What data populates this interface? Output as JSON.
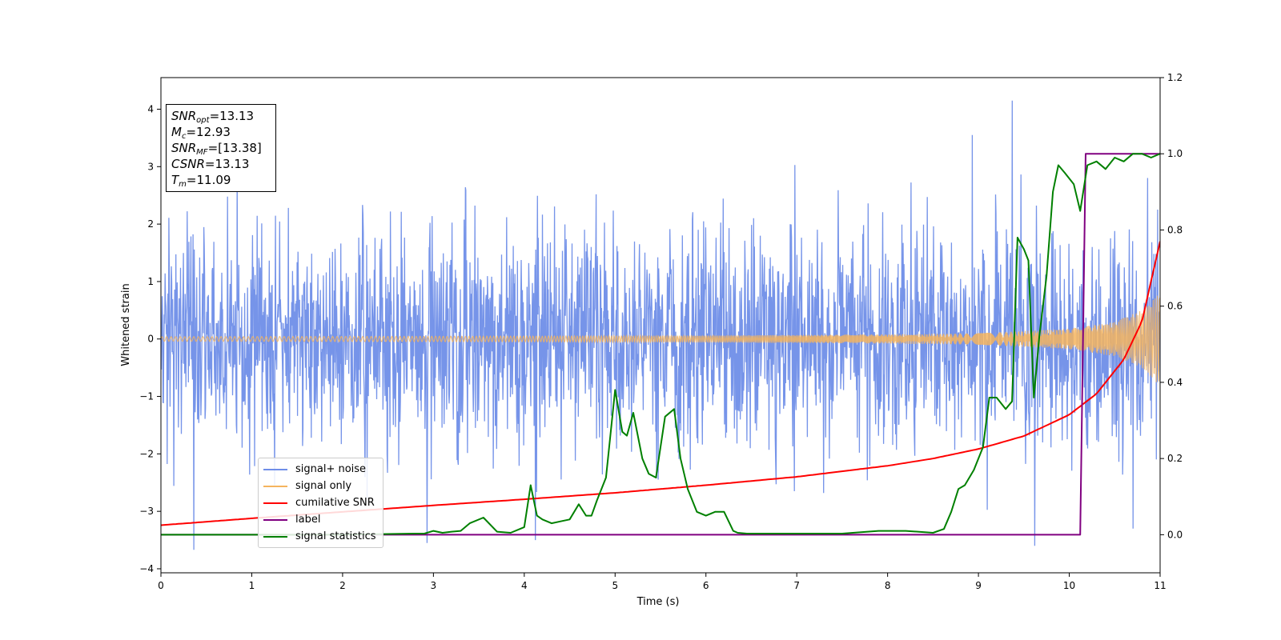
{
  "info_box": {
    "snr_opt": {
      "main": "SNR",
      "sub": "opt",
      "value": "=13.13"
    },
    "mc": {
      "main": "M",
      "sub": "c",
      "value": "=12.93"
    },
    "snr_mf": {
      "main": "SNR",
      "sub": "MF",
      "value": "=[13.38]"
    },
    "csnr": {
      "main": "CSNR",
      "value": "=13.13"
    },
    "tm": {
      "main": "T",
      "sub": "m",
      "value": "=11.09"
    }
  },
  "legend": [
    {
      "label": "signal+ noise",
      "color": "#6f8ee8"
    },
    {
      "label": "signal only",
      "color": "#f5b45e"
    },
    {
      "label": "cumilative SNR",
      "color": "#ff0000"
    },
    {
      "label": "label",
      "color": "#800080"
    },
    {
      "label": "signal statistics",
      "color": "#008000"
    }
  ],
  "chart_data": {
    "type": "line",
    "xlabel": "Time (s)",
    "ylabel": "Whitened strain",
    "xlim": [
      0,
      11
    ],
    "ylim": [
      -4.07,
      4.55
    ],
    "y2lim": [
      -0.1,
      1.2
    ],
    "xticks": [
      "0",
      "1",
      "2",
      "3",
      "4",
      "5",
      "6",
      "7",
      "8",
      "9",
      "10",
      "11"
    ],
    "yticks": [
      "4",
      "3",
      "2",
      "1",
      "0",
      "−1",
      "−2",
      "−3",
      "−4"
    ],
    "y2ticks": [
      "1.2",
      "1.0",
      "0.8",
      "0.6",
      "0.4",
      "0.2",
      "0.0"
    ],
    "series": [
      {
        "name": "signal+ noise",
        "axis": "left",
        "color": "#6f8ee8",
        "noise_std": 0.95,
        "x_range": [
          0,
          11
        ],
        "samples": 2400,
        "peaks": [
          [
            0.36,
            -3.67
          ],
          [
            4.12,
            -3.5
          ],
          [
            9.37,
            4.15
          ],
          [
            9.62,
            -3.6
          ],
          [
            2.93,
            -3.55
          ],
          [
            10.7,
            -3.3
          ],
          [
            8.93,
            3.55
          ]
        ]
      },
      {
        "name": "signal only",
        "axis": "left",
        "color": "#f5b45e",
        "envelope": [
          [
            0,
            0.04
          ],
          [
            2,
            0.045
          ],
          [
            4,
            0.05
          ],
          [
            6,
            0.06
          ],
          [
            8,
            0.08
          ],
          [
            9,
            0.1
          ],
          [
            10,
            0.18
          ],
          [
            10.5,
            0.3
          ],
          [
            10.8,
            0.5
          ],
          [
            11,
            0.82
          ]
        ],
        "cycles_per_second": 20
      },
      {
        "name": "cumilative SNR",
        "axis": "right",
        "color": "#ff0000",
        "x": [
          0,
          1,
          2,
          3,
          4,
          5,
          6,
          7,
          8,
          8.5,
          9,
          9.5,
          10,
          10.3,
          10.6,
          10.8,
          11
        ],
        "y": [
          0.025,
          0.043,
          0.06,
          0.077,
          0.093,
          0.11,
          0.13,
          0.152,
          0.181,
          0.2,
          0.225,
          0.259,
          0.315,
          0.37,
          0.46,
          0.56,
          0.77
        ]
      },
      {
        "name": "label",
        "axis": "right",
        "color": "#800080",
        "x": [
          0,
          10.12,
          10.18,
          11
        ],
        "y": [
          0.0,
          0.0,
          1.0,
          1.0
        ]
      },
      {
        "name": "signal statistics",
        "axis": "right",
        "color": "#008000",
        "x": [
          0,
          1,
          2,
          2.8,
          2.9,
          3.0,
          3.1,
          3.2,
          3.3,
          3.4,
          3.55,
          3.7,
          3.85,
          4.0,
          4.07,
          4.14,
          4.2,
          4.3,
          4.4,
          4.5,
          4.6,
          4.68,
          4.74,
          4.8,
          4.9,
          5.0,
          5.08,
          5.13,
          5.2,
          5.3,
          5.37,
          5.45,
          5.55,
          5.65,
          5.72,
          5.8,
          5.9,
          6.0,
          6.1,
          6.2,
          6.3,
          6.35,
          6.45,
          6.6,
          6.8,
          7.0,
          7.5,
          7.9,
          8.2,
          8.5,
          8.62,
          8.7,
          8.78,
          8.85,
          8.95,
          9.05,
          9.12,
          9.2,
          9.3,
          9.37,
          9.43,
          9.5,
          9.55,
          9.61,
          9.67,
          9.75,
          9.82,
          9.88,
          9.95,
          10.05,
          10.12,
          10.2,
          10.3,
          10.4,
          10.5,
          10.6,
          10.7,
          10.8,
          10.9,
          11.0
        ],
        "y": [
          0.0,
          0.0,
          0.0,
          0.003,
          0.003,
          0.01,
          0.005,
          0.008,
          0.01,
          0.03,
          0.045,
          0.008,
          0.005,
          0.02,
          0.13,
          0.05,
          0.04,
          0.03,
          0.035,
          0.04,
          0.08,
          0.05,
          0.05,
          0.09,
          0.15,
          0.38,
          0.27,
          0.26,
          0.32,
          0.2,
          0.16,
          0.15,
          0.31,
          0.33,
          0.2,
          0.12,
          0.06,
          0.05,
          0.06,
          0.06,
          0.01,
          0.005,
          0.003,
          0.003,
          0.003,
          0.003,
          0.003,
          0.01,
          0.01,
          0.005,
          0.015,
          0.06,
          0.12,
          0.13,
          0.17,
          0.23,
          0.36,
          0.36,
          0.33,
          0.35,
          0.78,
          0.75,
          0.72,
          0.36,
          0.52,
          0.68,
          0.9,
          0.97,
          0.95,
          0.92,
          0.85,
          0.97,
          0.98,
          0.96,
          0.99,
          0.98,
          1.0,
          1.0,
          0.99,
          1.0
        ]
      }
    ],
    "grid": false,
    "legend_position": "lower-left"
  }
}
